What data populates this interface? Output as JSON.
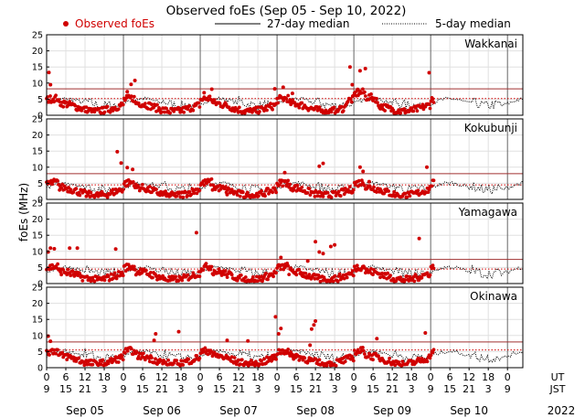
{
  "chart_data": {
    "type": "scatter",
    "title": "Observed foEs (Sep 05 - Sep 10, 2022)",
    "ylabel": "foEs (MHz)",
    "ylim": [
      0,
      25
    ],
    "yticks": [
      0,
      5,
      10,
      15,
      20,
      25
    ],
    "grid": true,
    "legend": {
      "position": "top",
      "entries": [
        {
          "name": "Observed foEs",
          "style": "red-dots",
          "color": "#d00000"
        },
        {
          "name": "27-day median",
          "style": "solid-line",
          "color": "#000000"
        },
        {
          "name": "5-day median",
          "style": "dotted-line",
          "color": "#000000"
        }
      ]
    },
    "x_axis": {
      "unit_labels": {
        "ut": "UT",
        "jst": "JST"
      },
      "hours_ut": [
        "0",
        "6",
        "12",
        "18",
        "0",
        "6",
        "12",
        "18",
        "0",
        "6",
        "12",
        "18",
        "0",
        "6",
        "12",
        "18",
        "0",
        "6",
        "12",
        "18",
        "0",
        "6",
        "12",
        "18",
        "0"
      ],
      "hours_jst": [
        "9",
        "15",
        "21",
        "3",
        "9",
        "15",
        "21",
        "3",
        "9",
        "15",
        "21",
        "3",
        "9",
        "15",
        "21",
        "3",
        "9",
        "15",
        "21",
        "3",
        "9",
        "15",
        "21",
        "3",
        "9"
      ],
      "days": [
        "Sep 05",
        "Sep 06",
        "Sep 07",
        "Sep 08",
        "Sep 09",
        "Sep 10"
      ],
      "year": "2022",
      "range_days": [
        0,
        6.2
      ]
    },
    "panels": [
      {
        "station": "Wakkanai",
        "median27_line": 8.2,
        "median27_dotted": 5.2,
        "outliers": [
          [
            0.03,
            13.3
          ],
          [
            0.05,
            9.5
          ],
          [
            1.1,
            9.6
          ],
          [
            1.15,
            10.8
          ],
          [
            1.05,
            7.3
          ],
          [
            2.05,
            7.0
          ],
          [
            2.15,
            8.1
          ],
          [
            2.97,
            8.2
          ],
          [
            3.08,
            8.7
          ],
          [
            3.2,
            6.8
          ],
          [
            3.95,
            15.0
          ],
          [
            3.98,
            9.5
          ],
          [
            4.08,
            13.8
          ],
          [
            4.15,
            14.5
          ],
          [
            4.05,
            8.0
          ],
          [
            4.98,
            13.2
          ]
        ]
      },
      {
        "station": "Kokubunji",
        "median27_line": 8.0,
        "median27_dotted": 4.5,
        "outliers": [
          [
            0.02,
            5.5
          ],
          [
            0.92,
            14.8
          ],
          [
            0.97,
            11.3
          ],
          [
            1.05,
            9.9
          ],
          [
            1.12,
            9.3
          ],
          [
            2.35,
            1.5
          ],
          [
            2.55,
            2.2
          ],
          [
            3.55,
            10.3
          ],
          [
            3.6,
            11.2
          ],
          [
            3.1,
            8.3
          ],
          [
            4.08,
            10.0
          ],
          [
            4.12,
            8.7
          ],
          [
            4.95,
            10.0
          ],
          [
            4.2,
            5.5
          ]
        ]
      },
      {
        "station": "Yamagawa",
        "median27_line": 7.5,
        "median27_dotted": 4.5,
        "outliers": [
          [
            0.02,
            9.8
          ],
          [
            0.05,
            11.0
          ],
          [
            0.1,
            10.8
          ],
          [
            0.3,
            11.0
          ],
          [
            0.4,
            11.0
          ],
          [
            0.9,
            10.7
          ],
          [
            1.95,
            15.8
          ],
          [
            3.05,
            8.1
          ],
          [
            3.1,
            5.0
          ],
          [
            3.5,
            13.0
          ],
          [
            3.55,
            9.8
          ],
          [
            3.6,
            9.3
          ],
          [
            3.7,
            11.5
          ],
          [
            3.75,
            12.0
          ],
          [
            3.4,
            7.0
          ],
          [
            4.85,
            14.0
          ]
        ]
      },
      {
        "station": "Okinawa",
        "median27_line": 8.0,
        "median27_dotted": 5.5,
        "outliers": [
          [
            0.02,
            9.8
          ],
          [
            0.05,
            8.2
          ],
          [
            1.42,
            10.5
          ],
          [
            1.4,
            8.5
          ],
          [
            1.72,
            11.2
          ],
          [
            2.35,
            8.5
          ],
          [
            2.62,
            8.3
          ],
          [
            2.98,
            15.8
          ],
          [
            3.02,
            10.5
          ],
          [
            3.05,
            12.2
          ],
          [
            3.45,
            12.0
          ],
          [
            3.48,
            13.3
          ],
          [
            3.5,
            14.5
          ],
          [
            3.43,
            7.0
          ],
          [
            4.3,
            9.0
          ],
          [
            4.93,
            10.8
          ]
        ]
      }
    ]
  }
}
